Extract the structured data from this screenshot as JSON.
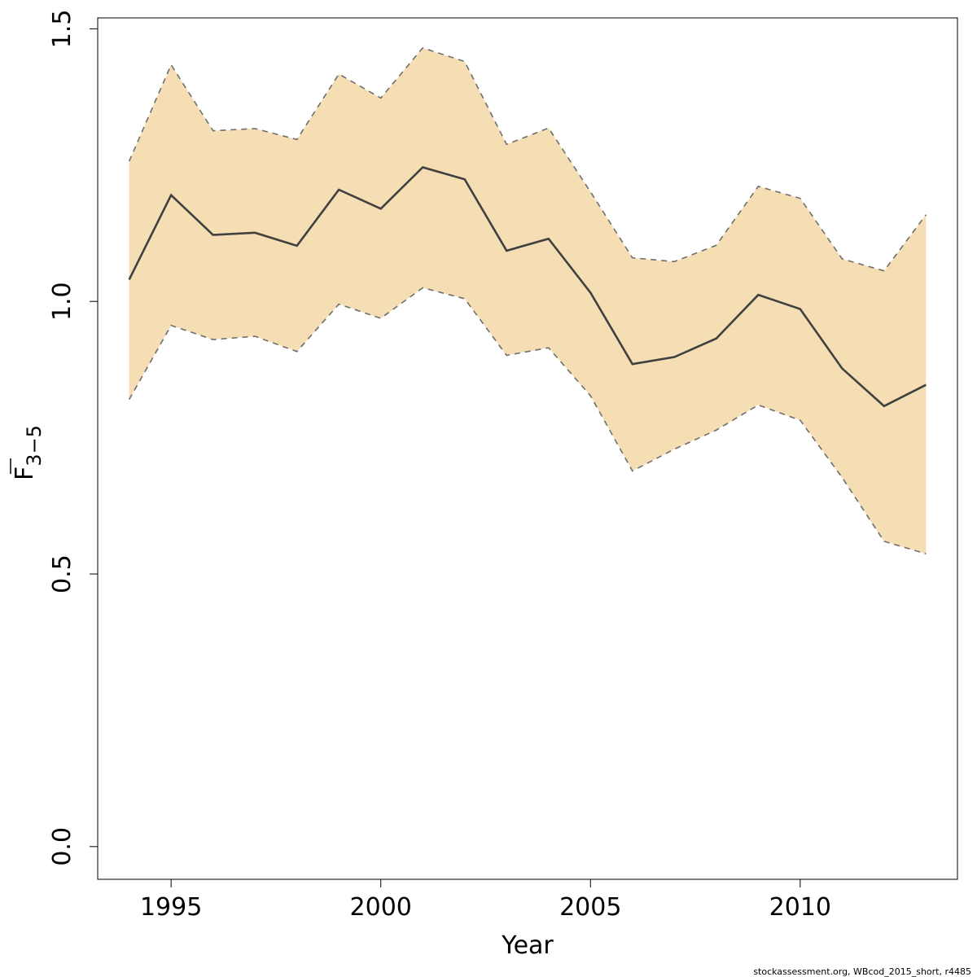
{
  "chart_data": {
    "type": "line",
    "xlabel": "Year",
    "ylabel": {
      "main": "F",
      "subscript": "3−5"
    },
    "xlim": [
      1993.25,
      2013.75
    ],
    "ylim": [
      -0.06,
      1.52
    ],
    "x_ticks": [
      1995,
      2000,
      2005,
      2010
    ],
    "y_ticks": [
      {
        "value": 0.0,
        "label": "0.0"
      },
      {
        "value": 0.5,
        "label": "0.5"
      },
      {
        "value": 1.0,
        "label": "1.0"
      },
      {
        "value": 1.5,
        "label": "1.5"
      }
    ],
    "grid": false,
    "x": [
      1994,
      1995,
      1996,
      1997,
      1998,
      1999,
      2000,
      2001,
      2002,
      2003,
      2004,
      2005,
      2006,
      2007,
      2008,
      2009,
      2010,
      2011,
      2012,
      2013
    ],
    "series": [
      {
        "role": "estimate",
        "values": [
          1.04,
          1.195,
          1.122,
          1.126,
          1.102,
          1.205,
          1.17,
          1.246,
          1.224,
          1.093,
          1.115,
          1.016,
          0.885,
          0.898,
          0.932,
          1.012,
          0.986,
          0.877,
          0.808,
          0.847
        ]
      },
      {
        "role": "upper",
        "values": [
          1.257,
          1.434,
          1.313,
          1.317,
          1.297,
          1.417,
          1.373,
          1.465,
          1.44,
          1.288,
          1.318,
          1.201,
          1.08,
          1.073,
          1.103,
          1.211,
          1.189,
          1.078,
          1.056,
          1.159
        ]
      },
      {
        "role": "lower",
        "values": [
          0.82,
          0.956,
          0.93,
          0.936,
          0.908,
          0.995,
          0.969,
          1.025,
          1.005,
          0.901,
          0.915,
          0.827,
          0.689,
          0.729,
          0.764,
          0.81,
          0.782,
          0.677,
          0.56,
          0.537
        ]
      }
    ],
    "colors": {
      "band": "#F5DEB3",
      "estimate_line": "#404040",
      "bound_line": "#6e6e6e",
      "axis": "#000000"
    }
  },
  "footer": "stockassessment.org, WBcod_2015_short, r4485"
}
